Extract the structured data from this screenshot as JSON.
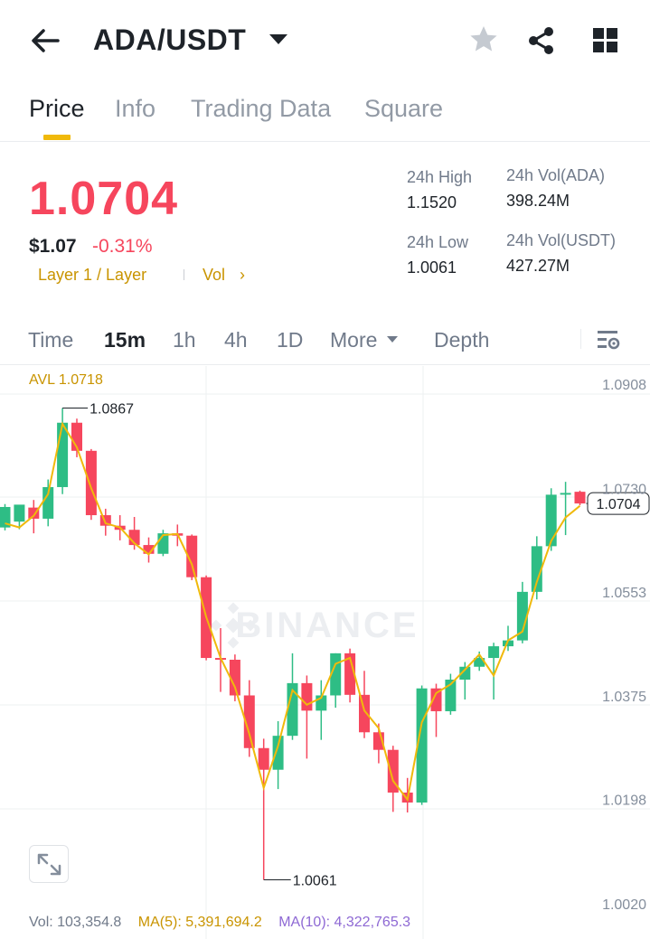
{
  "header": {
    "pair": "ADA/USDT",
    "icons": [
      "back-arrow-icon",
      "caret-down-icon",
      "star-icon",
      "share-icon",
      "grid-icon"
    ]
  },
  "tabs": [
    {
      "label": "Price",
      "active": true
    },
    {
      "label": "Info",
      "active": false
    },
    {
      "label": "Trading Data",
      "active": false
    },
    {
      "label": "Square",
      "active": false
    }
  ],
  "ticker": {
    "last_price": "1.0704",
    "usd_price": "$1.07",
    "change": "-0.31%",
    "tag": "Layer 1 / Layer",
    "vol_link": "Vol",
    "stats": {
      "high_label": "24h High",
      "high_value": "1.1520",
      "low_label": "24h Low",
      "low_value": "1.0061",
      "vol_base_label": "24h Vol(ADA)",
      "vol_base_value": "398.24M",
      "vol_quote_label": "24h Vol(USDT)",
      "vol_quote_value": "427.27M"
    }
  },
  "intervals": {
    "items": [
      {
        "label": "Time",
        "active": false
      },
      {
        "label": "15m",
        "active": true
      },
      {
        "label": "1h",
        "active": false
      },
      {
        "label": "4h",
        "active": false
      },
      {
        "label": "1D",
        "active": false
      },
      {
        "label": "More",
        "active": false
      },
      {
        "label": "Depth",
        "active": false
      }
    ]
  },
  "chart": {
    "avl": "AVL 1.0718",
    "watermark": "BINANCE",
    "current_price_label": "1.0704",
    "high_marker": "1.0867",
    "low_marker": "1.0061",
    "volume": "Vol: 103,354.8",
    "ma5": "MA(5): 5,391,694.2",
    "ma10": "MA(10): 4,322,765.3",
    "colors": {
      "up": "#2ebd85",
      "down": "#f6465d",
      "ma": "#f0b90b",
      "accent": "#f0b90b",
      "ma10": "#8e69d4"
    }
  },
  "chart_data": {
    "type": "candlestick",
    "y_ticks": [
      "1.0908",
      "1.0730",
      "1.0553",
      "1.0375",
      "1.0198",
      "1.0020"
    ],
    "ylim": [
      1.002,
      1.0908
    ],
    "candles": [
      {
        "o": 1.0663,
        "h": 1.0703,
        "l": 1.0658,
        "c": 1.0698
      },
      {
        "o": 1.0673,
        "h": 1.07,
        "l": 1.066,
        "c": 1.0702
      },
      {
        "o": 1.0697,
        "h": 1.071,
        "l": 1.0653,
        "c": 1.0678
      },
      {
        "o": 1.0678,
        "h": 1.0745,
        "l": 1.0665,
        "c": 1.0732
      },
      {
        "o": 1.0732,
        "h": 1.0867,
        "l": 1.072,
        "c": 1.0842
      },
      {
        "o": 1.0842,
        "h": 1.0849,
        "l": 1.0783,
        "c": 1.0794
      },
      {
        "o": 1.0794,
        "h": 1.0797,
        "l": 1.0676,
        "c": 1.0684
      },
      {
        "o": 1.0684,
        "h": 1.0695,
        "l": 1.0649,
        "c": 1.0666
      },
      {
        "o": 1.0666,
        "h": 1.0684,
        "l": 1.0641,
        "c": 1.0659
      },
      {
        "o": 1.0659,
        "h": 1.0681,
        "l": 1.0625,
        "c": 1.0633
      },
      {
        "o": 1.0633,
        "h": 1.0646,
        "l": 1.0603,
        "c": 1.0618
      },
      {
        "o": 1.0618,
        "h": 1.0659,
        "l": 1.0614,
        "c": 1.0653
      },
      {
        "o": 1.0653,
        "h": 1.0668,
        "l": 1.0631,
        "c": 1.0649
      },
      {
        "o": 1.0649,
        "h": 1.0651,
        "l": 1.0573,
        "c": 1.0578
      },
      {
        "o": 1.0578,
        "h": 1.0581,
        "l": 1.0436,
        "c": 1.044
      },
      {
        "o": 1.044,
        "h": 1.0491,
        "l": 1.0382,
        "c": 1.0437
      },
      {
        "o": 1.0437,
        "h": 1.0446,
        "l": 1.0366,
        "c": 1.0376
      },
      {
        "o": 1.0376,
        "h": 1.0402,
        "l": 1.0271,
        "c": 1.0286
      },
      {
        "o": 1.0286,
        "h": 1.0302,
        "l": 1.0061,
        "c": 1.0249
      },
      {
        "o": 1.0249,
        "h": 1.0332,
        "l": 1.0216,
        "c": 1.0307
      },
      {
        "o": 1.0307,
        "h": 1.0448,
        "l": 1.03,
        "c": 1.0397
      },
      {
        "o": 1.0397,
        "h": 1.041,
        "l": 1.0268,
        "c": 1.035
      },
      {
        "o": 1.035,
        "h": 1.0402,
        "l": 1.03,
        "c": 1.0376
      },
      {
        "o": 1.0376,
        "h": 1.0448,
        "l": 1.0355,
        "c": 1.0448
      },
      {
        "o": 1.0448,
        "h": 1.0456,
        "l": 1.0364,
        "c": 1.0377
      },
      {
        "o": 1.0377,
        "h": 1.0418,
        "l": 1.0303,
        "c": 1.0313
      },
      {
        "o": 1.0313,
        "h": 1.0328,
        "l": 1.026,
        "c": 1.0283
      },
      {
        "o": 1.0283,
        "h": 1.029,
        "l": 1.0177,
        "c": 1.021
      },
      {
        "o": 1.021,
        "h": 1.0235,
        "l": 1.0176,
        "c": 1.0193
      },
      {
        "o": 1.0193,
        "h": 1.0393,
        "l": 1.0189,
        "c": 1.0388
      },
      {
        "o": 1.0388,
        "h": 1.0396,
        "l": 1.0305,
        "c": 1.0349
      },
      {
        "o": 1.0349,
        "h": 1.0413,
        "l": 1.0343,
        "c": 1.0403
      },
      {
        "o": 1.0403,
        "h": 1.0433,
        "l": 1.0369,
        "c": 1.0425
      },
      {
        "o": 1.0425,
        "h": 1.0451,
        "l": 1.0418,
        "c": 1.044
      },
      {
        "o": 1.044,
        "h": 1.0466,
        "l": 1.0369,
        "c": 1.046
      },
      {
        "o": 1.046,
        "h": 1.0495,
        "l": 1.0452,
        "c": 1.047
      },
      {
        "o": 1.047,
        "h": 1.057,
        "l": 1.0465,
        "c": 1.0553
      },
      {
        "o": 1.0553,
        "h": 1.0648,
        "l": 1.054,
        "c": 1.0631
      },
      {
        "o": 1.0631,
        "h": 1.073,
        "l": 1.0623,
        "c": 1.0719
      },
      {
        "o": 1.0719,
        "h": 1.0741,
        "l": 1.065,
        "c": 1.0722
      },
      {
        "o": 1.0724,
        "h": 1.0726,
        "l": 1.0701,
        "c": 1.0704
      }
    ],
    "ma_line": [
      1.067,
      1.0663,
      1.0683,
      1.072,
      1.084,
      1.08,
      1.073,
      1.067,
      1.0663,
      1.0636,
      1.0617,
      1.065,
      1.0652,
      1.06,
      1.051,
      1.044,
      1.039,
      1.031,
      1.0218,
      1.029,
      1.0385,
      1.036,
      1.0372,
      1.043,
      1.044,
      1.035,
      1.032,
      1.023,
      1.0198,
      1.033,
      1.038,
      1.0395,
      1.042,
      1.0446,
      1.041,
      1.047,
      1.0485,
      1.057,
      1.064,
      1.068,
      1.07
    ]
  }
}
